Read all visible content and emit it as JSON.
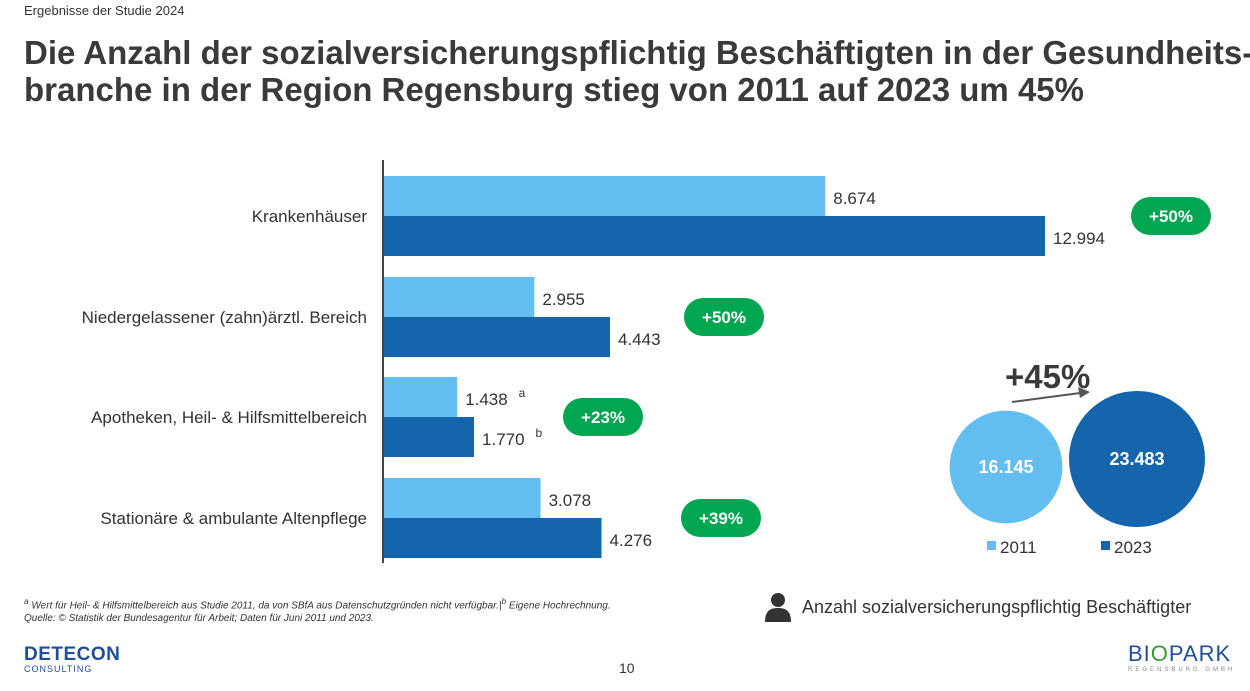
{
  "header": {
    "kicker": "Ergebnisse der Studie 2024",
    "title_line1": "Die Anzahl der sozialversicherungspflichtig Beschäftigten in der Gesundheits-",
    "title_line2": "branche in der Region Regensburg stieg von 2011 auf 2023 um 45%"
  },
  "colors": {
    "year_2011": "#63bdf1",
    "year_2023": "#1565ad",
    "growth_badge": "#00a650"
  },
  "chart_data": [
    {
      "type": "bar",
      "orientation": "horizontal",
      "categories": [
        "Krankenhäuser",
        "Niedergelassener (zahn)ärztl. Bereich",
        "Apotheken, Heil- & Hilfsmittelbereich",
        "Stationäre & ambulante Altenpflege"
      ],
      "series": [
        {
          "name": "2011",
          "values": [
            8674,
            2955,
            1438,
            3078
          ],
          "labels": [
            "8.674",
            "2.955",
            "1.438",
            "3.078"
          ],
          "footnote_marks": [
            "",
            "",
            "a",
            ""
          ]
        },
        {
          "name": "2023",
          "values": [
            12994,
            4443,
            1770,
            4276
          ],
          "labels": [
            "12.994",
            "4.443",
            "1.770",
            "4.276"
          ],
          "footnote_marks": [
            "",
            "",
            "b",
            ""
          ]
        }
      ],
      "growth_labels": [
        "+50%",
        "+50%",
        "+23%",
        "+39%"
      ],
      "xlim": [
        0,
        12994
      ],
      "grid": false
    },
    {
      "type": "bubble",
      "series": [
        {
          "name": "2011",
          "value": 16145,
          "label": "16.145"
        },
        {
          "name": "2023",
          "value": 23483,
          "label": "23.483"
        }
      ],
      "growth_label": "+45%",
      "legend": [
        "2011",
        "2023"
      ],
      "legend_position": "bottom"
    }
  ],
  "footnote": {
    "line1_start": "Wert für Heil- & Hilfsmittelbereich aus Studie 2011, da von SBfA aus Datenschutzgründen nicht verfügbar.|",
    "line1_end": "Eigene Hochrechnung.",
    "mark_a": "a",
    "mark_b": "b",
    "line2": "Quelle: © Statistik der Bundesagentur für Arbeit; Daten für Juni 2011 und 2023."
  },
  "employees_note": {
    "icon": "person-icon",
    "text": "Anzahl sozialversicherungspflichtig Beschäftigter"
  },
  "footer": {
    "logo_left_main": "DETECON",
    "logo_left_sub": "CONSULTING",
    "page_number": "10",
    "logo_right_part1": "BI",
    "logo_right_part2": "O",
    "logo_right_part3": "PARK",
    "logo_right_sub": "REGENSBURG GMBH"
  }
}
